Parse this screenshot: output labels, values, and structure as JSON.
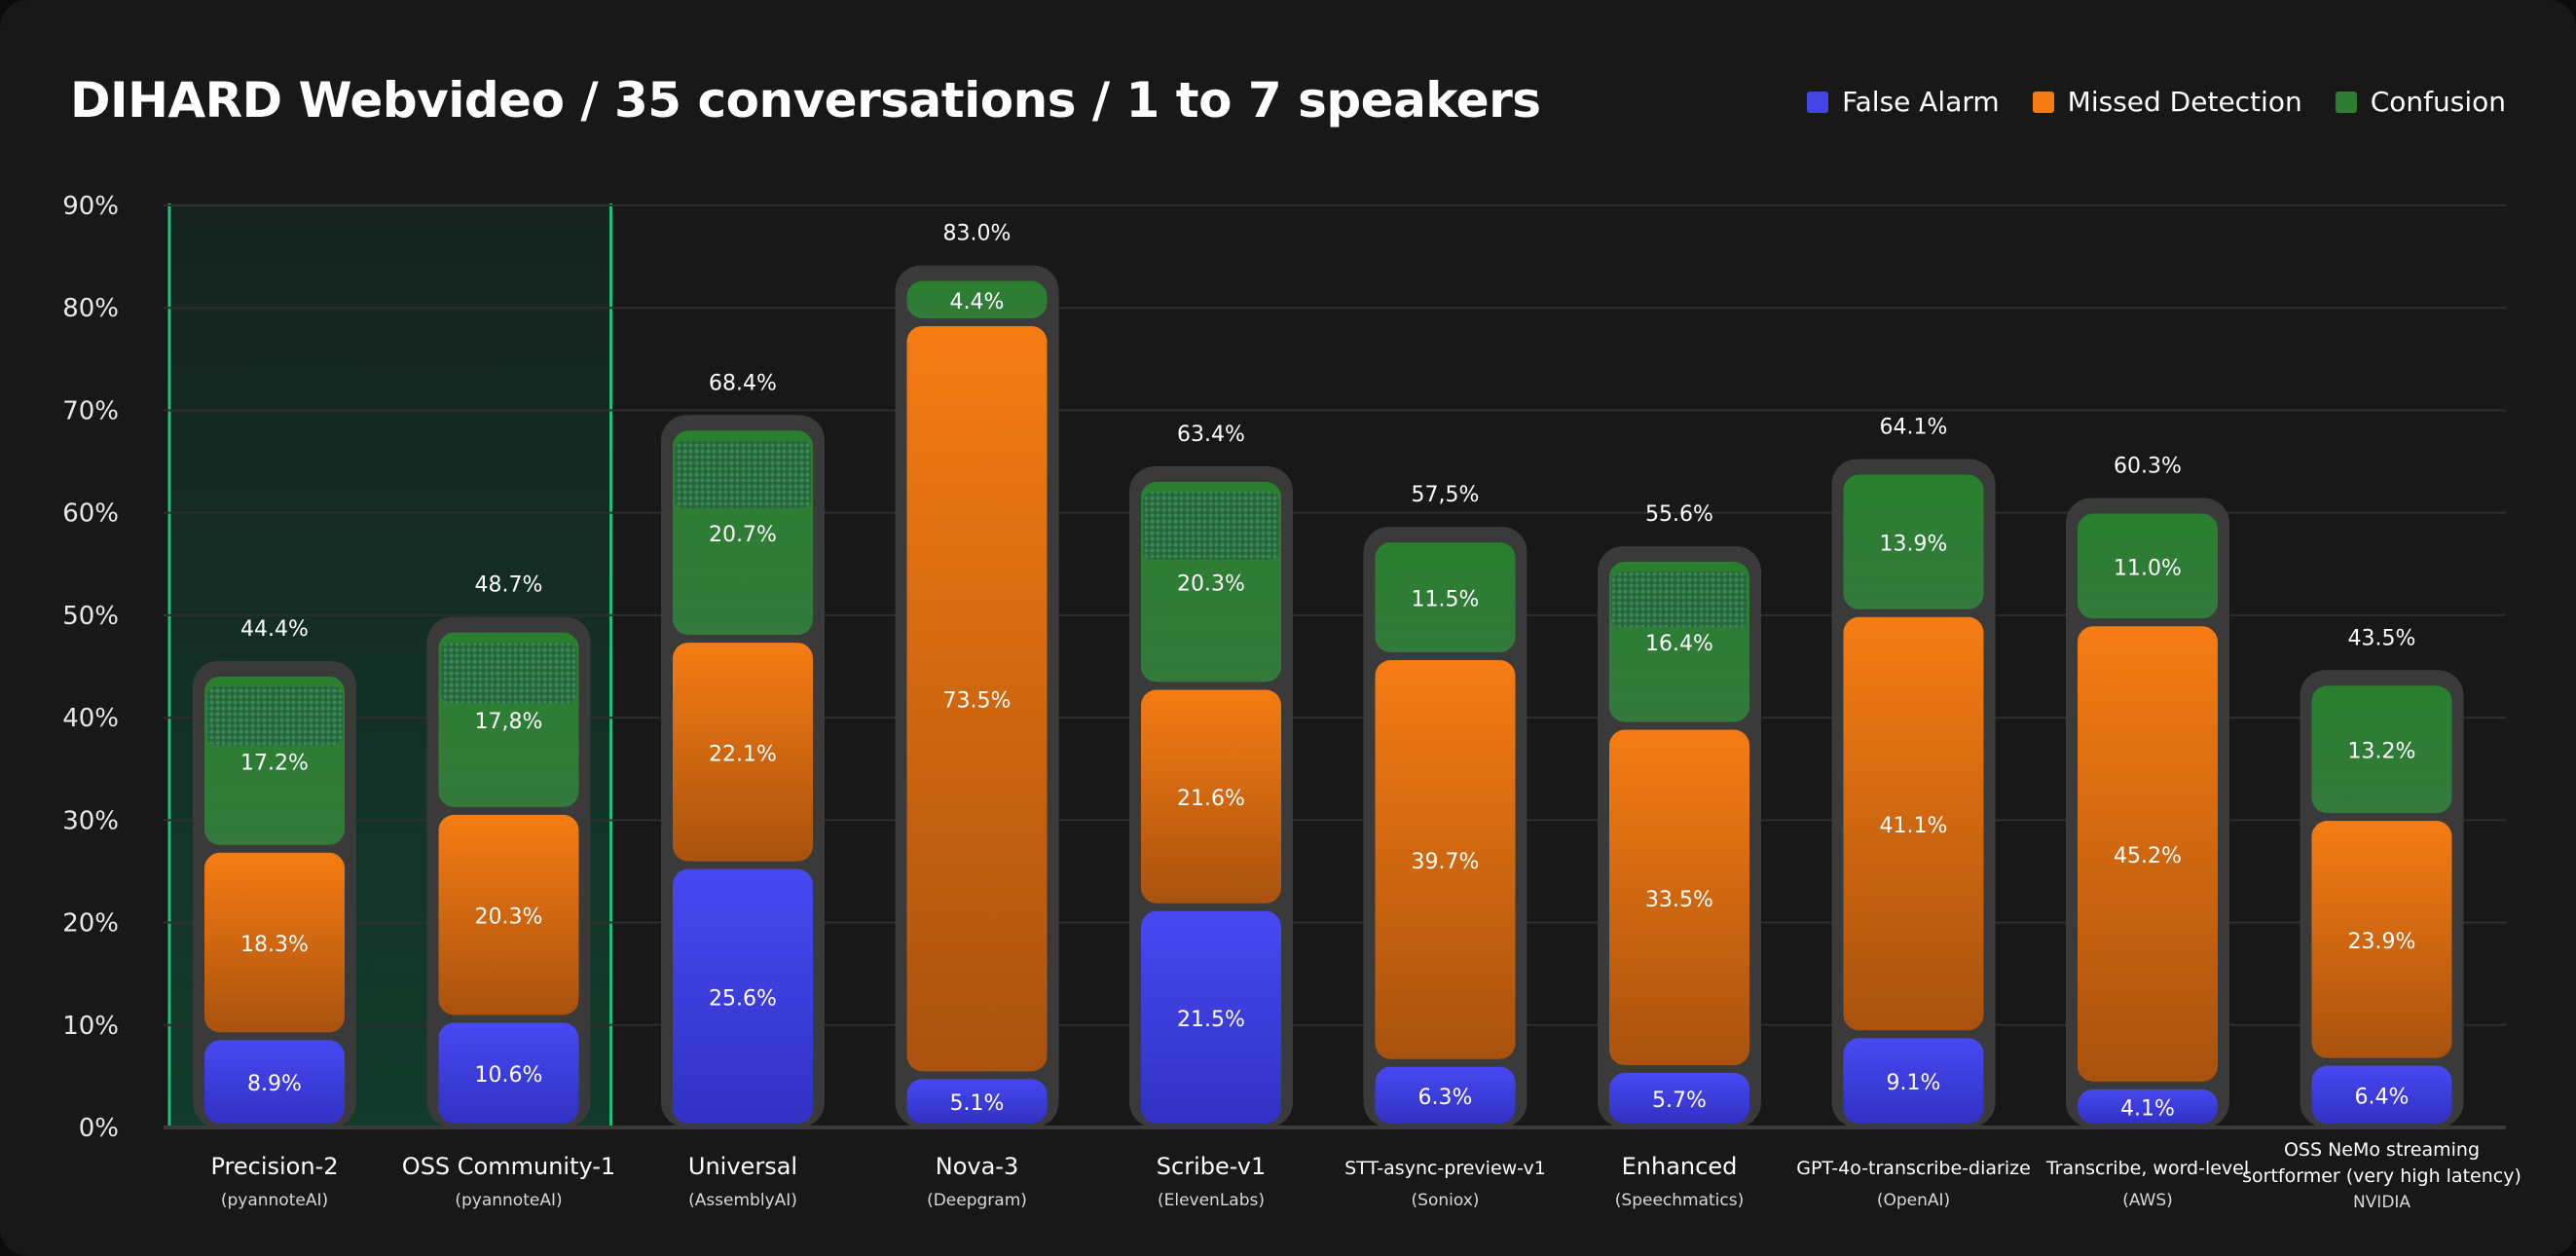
{
  "chart_data": {
    "type": "bar",
    "stacked": true,
    "title": "DIHARD Webvideo / 35 conversations / 1 to 7 speakers",
    "ylabel": "",
    "xlabel": "",
    "ylim": [
      0,
      90
    ],
    "yticks": [
      "0%",
      "10%",
      "20%",
      "30%",
      "40%",
      "50%",
      "60%",
      "70%",
      "80%",
      "90%"
    ],
    "grid": true,
    "legend_position": "top-right",
    "colors": {
      "False Alarm": "#4343e6",
      "Missed Detection": "#f47b14",
      "Confusion": "#2e7d32",
      "highlight": "#1fbf7a"
    },
    "categories": [
      {
        "name": "Precision-2",
        "sub": "(pyannoteAI)",
        "highlight": true,
        "hatched": true
      },
      {
        "name": "OSS Community-1",
        "sub": "(pyannoteAI)",
        "highlight": true,
        "hatched": true
      },
      {
        "name": "Universal",
        "sub": "(AssemblyAI)",
        "hatched": true
      },
      {
        "name": "Nova-3",
        "sub": "(Deepgram)"
      },
      {
        "name": "Scribe-v1",
        "sub": "(ElevenLabs)",
        "hatched": true
      },
      {
        "name": "STT-async-preview-v1",
        "sub": "(Soniox)"
      },
      {
        "name": "Enhanced",
        "sub": "(Speechmatics)",
        "hatched": true
      },
      {
        "name": "GPT-4o-transcribe-diarize",
        "sub": "(OpenAI)"
      },
      {
        "name": "Transcribe, word-level",
        "sub": "(AWS)"
      },
      {
        "name": "OSS NeMo streaming",
        "name2": "sortformer (very high latency)",
        "sub": "NVIDIA"
      }
    ],
    "totals": [
      44.4,
      48.7,
      68.4,
      83.0,
      63.4,
      57.5,
      55.6,
      64.1,
      60.3,
      43.5
    ],
    "total_labels": [
      "44.4%",
      "48.7%",
      "68.4%",
      "83.0%",
      "63.4%",
      "57,5%",
      "55.6%",
      "64.1%",
      "60.3%",
      "43.5%"
    ],
    "series": [
      {
        "name": "False Alarm",
        "values": [
          8.9,
          10.6,
          25.6,
          5.1,
          21.5,
          6.3,
          5.7,
          9.1,
          4.1,
          6.4
        ],
        "labels": [
          "8.9%",
          "10.6%",
          "25.6%",
          "5.1%",
          "21.5%",
          "6.3%",
          "5.7%",
          "9.1%",
          "4.1%",
          "6.4%"
        ]
      },
      {
        "name": "Missed Detection",
        "values": [
          18.3,
          20.3,
          22.1,
          73.5,
          21.6,
          39.7,
          33.5,
          41.1,
          45.2,
          23.9
        ],
        "labels": [
          "18.3%",
          "20.3%",
          "22.1%",
          "73.5%",
          "21.6%",
          "39.7%",
          "33.5%",
          "41.1%",
          "45.2%",
          "23.9%"
        ]
      },
      {
        "name": "Confusion",
        "values": [
          17.2,
          17.8,
          20.7,
          4.4,
          20.3,
          11.5,
          16.4,
          13.9,
          11.0,
          13.2
        ],
        "labels": [
          "17.2%",
          "17,8%",
          "20.7%",
          "4.4%",
          "20.3%",
          "11.5%",
          "16.4%",
          "13.9%",
          "11.0%",
          "13.2%"
        ]
      }
    ]
  }
}
